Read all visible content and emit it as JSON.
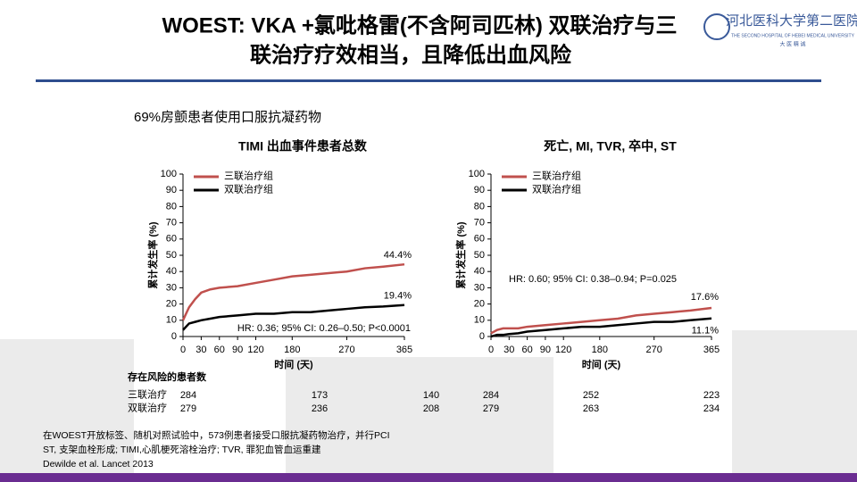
{
  "header": {
    "title_lines": [
      "WOEST: VKA +氯吡格雷(不含阿司匹林) 双联治疗与三",
      "联治疗疗效相当，且降低出血风险"
    ],
    "logo_name": "河北医科大学第二医院",
    "logo_english": "THE SECOND HOSPITAL OF HEBEI MEDICAL UNIVERSITY",
    "logo_motto": "大 医 精 诚"
  },
  "subtitle": "69%房颤患者使用口服抗凝药物",
  "chart_data": [
    {
      "type": "line",
      "title": "TIMI 出血事件患者总数",
      "xlabel": "时间 (天)",
      "ylabel": "累计发生率 (%)",
      "annotation": "HR: 0.36; 95% CI: 0.26–0.50; P<0.0001",
      "x": [
        0,
        5,
        10,
        20,
        30,
        45,
        60,
        90,
        120,
        150,
        180,
        210,
        240,
        270,
        300,
        330,
        365
      ],
      "xlim": [
        0,
        365
      ],
      "xticks": [
        0,
        30,
        60,
        90,
        120,
        180,
        270,
        365
      ],
      "ylim": [
        0,
        100
      ],
      "yticks": [
        0,
        10,
        20,
        30,
        40,
        50,
        60,
        70,
        80,
        90,
        100
      ],
      "series": [
        {
          "name": "三联治疗组",
          "color": "#c0504d",
          "values": [
            10,
            14,
            18,
            23,
            27,
            29,
            30,
            31,
            33,
            35,
            37,
            38,
            39,
            40,
            42,
            43,
            44.4
          ],
          "end_label": "44.4%"
        },
        {
          "name": "双联治疗组",
          "color": "#000000",
          "values": [
            4,
            6,
            8,
            9,
            10,
            11,
            12,
            13,
            14,
            14,
            15,
            15,
            16,
            17,
            18,
            18.5,
            19.4
          ],
          "end_label": "19.4%"
        }
      ]
    },
    {
      "type": "line",
      "title": "死亡, MI, TVR, 卒中, ST",
      "xlabel": "时间 (天)",
      "ylabel": "累计发生率 (%)",
      "annotation": "HR: 0.60; 95% CI: 0.38–0.94; P=0.025",
      "x": [
        0,
        5,
        10,
        20,
        30,
        45,
        60,
        90,
        120,
        150,
        180,
        210,
        240,
        270,
        300,
        330,
        365
      ],
      "xlim": [
        0,
        365
      ],
      "xticks": [
        0,
        30,
        60,
        90,
        120,
        180,
        270,
        365
      ],
      "ylim": [
        0,
        100
      ],
      "yticks": [
        0,
        10,
        20,
        30,
        40,
        50,
        60,
        70,
        80,
        90,
        100
      ],
      "series": [
        {
          "name": "三联治疗组",
          "color": "#c0504d",
          "values": [
            2,
            3,
            4,
            5,
            5,
            5,
            6,
            7,
            8,
            9,
            10,
            11,
            13,
            14,
            15,
            16,
            17.6
          ],
          "end_label": "17.6%"
        },
        {
          "name": "双联治疗组",
          "color": "#000000",
          "values": [
            0,
            0.5,
            1,
            1,
            1.5,
            2,
            3,
            4,
            5,
            6,
            6,
            7,
            8,
            9,
            9,
            10,
            11.1
          ],
          "end_label": "11.1%"
        }
      ]
    }
  ],
  "risk_table": {
    "title": "存在风险的患者数",
    "rows": [
      {
        "label": "三联治疗",
        "values": [
          "284",
          "173",
          "140",
          "284",
          "252",
          "223"
        ]
      },
      {
        "label": "双联治疗",
        "values": [
          "279",
          "236",
          "208",
          "279",
          "263",
          "234"
        ]
      }
    ]
  },
  "footnotes": [
    "在WOEST开放标签、随机对照试验中，573例患者接受口服抗凝药物治疗，并行PCI",
    "ST, 支架血栓形成; TIMI,心肌梗死溶栓治疗; TVR, 罪犯血管血运重建",
    "Dewilde et al. Lancet 2013"
  ]
}
